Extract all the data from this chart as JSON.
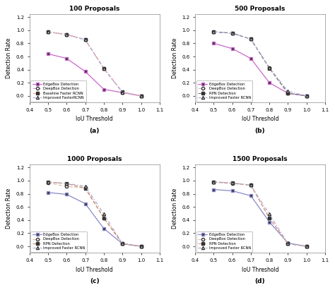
{
  "subplots": [
    {
      "title": "100 Proposals",
      "label": "(a)",
      "series": [
        {
          "label": "EdgeBox Detection",
          "x": [
            0.5,
            0.6,
            0.7,
            0.8,
            0.9,
            1.0
          ],
          "y": [
            0.64,
            0.57,
            0.37,
            0.1,
            0.05,
            0.0
          ],
          "color": "#cc66cc",
          "linestyle": "-",
          "marker": "s",
          "markerfacecolor": "#333333",
          "markeredgecolor": "#cc66cc",
          "dashes": null
        },
        {
          "label": "DeepBox Detection",
          "x": [
            0.5,
            0.6,
            0.7,
            0.8,
            0.9,
            1.0
          ],
          "y": [
            0.975,
            0.93,
            0.855,
            0.415,
            0.055,
            0.0
          ],
          "color": "#cc99cc",
          "linestyle": "--",
          "marker": "o",
          "markerfacecolor": "white",
          "markeredgecolor": "#333333",
          "dashes": [
            4,
            2
          ]
        },
        {
          "label": "Baseline Faster RCNN",
          "x": [
            0.5,
            0.6,
            0.7,
            0.8,
            0.9,
            1.0
          ],
          "y": [
            0.975,
            0.935,
            0.855,
            0.42,
            0.06,
            0.0
          ],
          "color": "#ffaa88",
          "linestyle": "--",
          "marker": "s",
          "markerfacecolor": "#333333",
          "markeredgecolor": "#333333",
          "dashes": [
            4,
            2
          ]
        },
        {
          "label": "Improved FasterRCNN",
          "x": [
            0.5,
            0.6,
            0.7,
            0.8,
            0.9,
            1.0
          ],
          "y": [
            0.975,
            0.935,
            0.855,
            0.415,
            0.055,
            0.0
          ],
          "color": "#aaaadd",
          "linestyle": "-.",
          "marker": "^",
          "markerfacecolor": "white",
          "markeredgecolor": "#333333",
          "dashes": [
            4,
            2,
            1,
            2
          ]
        }
      ]
    },
    {
      "title": "500 Proposals",
      "label": "(b)",
      "series": [
        {
          "label": "EdgeBox Detection",
          "x": [
            0.5,
            0.6,
            0.7,
            0.8,
            0.9,
            1.0
          ],
          "y": [
            0.8,
            0.72,
            0.57,
            0.2,
            0.04,
            0.0
          ],
          "color": "#cc66cc",
          "linestyle": "-",
          "marker": "s",
          "markerfacecolor": "#333333",
          "markeredgecolor": "#cc66cc",
          "dashes": null
        },
        {
          "label": "DeepBox Detection",
          "x": [
            0.5,
            0.6,
            0.7,
            0.8,
            0.9,
            1.0
          ],
          "y": [
            0.975,
            0.955,
            0.865,
            0.43,
            0.04,
            0.0
          ],
          "color": "#ddbbbb",
          "linestyle": "--",
          "marker": "o",
          "markerfacecolor": "white",
          "markeredgecolor": "#333333",
          "dashes": [
            4,
            2
          ]
        },
        {
          "label": "RPN Detection",
          "x": [
            0.5,
            0.6,
            0.7,
            0.8,
            0.9,
            1.0
          ],
          "y": [
            0.975,
            0.955,
            0.865,
            0.42,
            0.04,
            0.0
          ],
          "color": "#777777",
          "linestyle": "--",
          "marker": "s",
          "markerfacecolor": "#333333",
          "markeredgecolor": "#333333",
          "dashes": [
            4,
            2
          ]
        },
        {
          "label": "Improved Faster RCNN",
          "x": [
            0.5,
            0.6,
            0.7,
            0.8,
            0.9,
            1.0
          ],
          "y": [
            0.975,
            0.955,
            0.865,
            0.43,
            0.07,
            0.0
          ],
          "color": "#aaaadd",
          "linestyle": "-.",
          "marker": "^",
          "markerfacecolor": "white",
          "markeredgecolor": "#333333",
          "dashes": [
            4,
            2,
            1,
            2
          ]
        }
      ]
    },
    {
      "title": "1000 Proposals",
      "label": "(c)",
      "series": [
        {
          "label": "EdgeBox Detection",
          "x": [
            0.5,
            0.6,
            0.7,
            0.8,
            0.9,
            1.0
          ],
          "y": [
            0.82,
            0.79,
            0.65,
            0.27,
            0.04,
            0.0
          ],
          "color": "#8888cc",
          "linestyle": "-",
          "marker": "s",
          "markerfacecolor": "#333333",
          "markeredgecolor": "#8888cc",
          "dashes": null
        },
        {
          "label": "DeepBox Detection",
          "x": [
            0.5,
            0.6,
            0.7,
            0.8,
            0.9,
            1.0
          ],
          "y": [
            0.97,
            0.91,
            0.89,
            0.43,
            0.04,
            0.0
          ],
          "color": "#ddbbaa",
          "linestyle": "--",
          "marker": "o",
          "markerfacecolor": "white",
          "markeredgecolor": "#333333",
          "dashes": [
            4,
            2
          ]
        },
        {
          "label": "RPN Detection",
          "x": [
            0.5,
            0.6,
            0.7,
            0.8,
            0.9,
            1.0
          ],
          "y": [
            0.98,
            0.955,
            0.885,
            0.43,
            0.04,
            0.0
          ],
          "color": "#cc8866",
          "linestyle": "--",
          "marker": "s",
          "markerfacecolor": "#333333",
          "markeredgecolor": "#333333",
          "dashes": [
            4,
            2
          ]
        },
        {
          "label": "Improved Faster RCNN",
          "x": [
            0.5,
            0.6,
            0.7,
            0.8,
            0.9,
            1.0
          ],
          "y": [
            0.98,
            0.955,
            0.915,
            0.49,
            0.04,
            0.0
          ],
          "color": "#aaaacc",
          "linestyle": "-.",
          "marker": "^",
          "markerfacecolor": "white",
          "markeredgecolor": "#333333",
          "dashes": [
            4,
            2,
            1,
            2
          ]
        }
      ]
    },
    {
      "title": "1500 Proposals",
      "label": "(d)",
      "series": [
        {
          "label": "EdgeBox Detection",
          "x": [
            0.5,
            0.6,
            0.7,
            0.8,
            0.9,
            1.0
          ],
          "y": [
            0.865,
            0.845,
            0.77,
            0.37,
            0.05,
            0.0
          ],
          "color": "#8888cc",
          "linestyle": "-",
          "marker": "s",
          "markerfacecolor": "#333333",
          "markeredgecolor": "#8888cc",
          "dashes": null
        },
        {
          "label": "DeepBox Detection",
          "x": [
            0.5,
            0.6,
            0.7,
            0.8,
            0.9,
            1.0
          ],
          "y": [
            0.975,
            0.955,
            0.93,
            0.43,
            0.04,
            0.0
          ],
          "color": "#ddbbaa",
          "linestyle": "--",
          "marker": "o",
          "markerfacecolor": "white",
          "markeredgecolor": "#333333",
          "dashes": [
            4,
            2
          ]
        },
        {
          "label": "RPN Detection",
          "x": [
            0.5,
            0.6,
            0.7,
            0.8,
            0.9,
            1.0
          ],
          "y": [
            0.98,
            0.965,
            0.93,
            0.43,
            0.04,
            0.0
          ],
          "color": "#dd9988",
          "linestyle": "--",
          "marker": "s",
          "markerfacecolor": "#333333",
          "markeredgecolor": "#333333",
          "dashes": [
            4,
            2
          ]
        },
        {
          "label": "Improved Faster RCNN",
          "x": [
            0.5,
            0.6,
            0.7,
            0.8,
            0.9,
            1.0
          ],
          "y": [
            0.98,
            0.965,
            0.93,
            0.49,
            0.04,
            0.0
          ],
          "color": "#aaaacc",
          "linestyle": "-.",
          "marker": "^",
          "markerfacecolor": "white",
          "markeredgecolor": "#333333",
          "dashes": [
            4,
            2,
            1,
            2
          ]
        }
      ]
    }
  ],
  "xlim": [
    0.4,
    1.1
  ],
  "ylim": [
    -0.1,
    1.25
  ],
  "xticks": [
    0.4,
    0.5,
    0.6,
    0.7,
    0.8,
    0.9,
    1.0,
    1.1
  ],
  "yticks": [
    0.0,
    0.2,
    0.4,
    0.6,
    0.8,
    1.0,
    1.2
  ],
  "xlabel": "IoU Threshold",
  "ylabel": "Detection Rate",
  "bg_color": "#ffffff",
  "fig_bg": "#ffffff"
}
